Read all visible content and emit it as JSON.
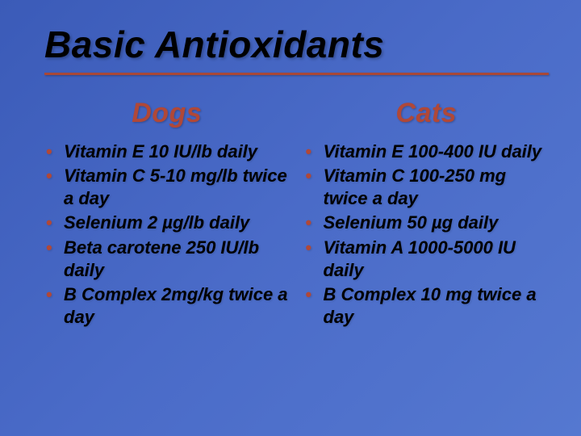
{
  "title": "Basic Antioxidants",
  "background_gradient": [
    "#3b5bb8",
    "#4a6bc8",
    "#5578d0"
  ],
  "underline_color": "#a84838",
  "header_color": "#b04838",
  "bullet_color": "#b04838",
  "text_color": "#000000",
  "title_fontsize": 46,
  "header_fontsize": 34,
  "item_fontsize": 22,
  "columns": [
    {
      "header": "Dogs",
      "items": [
        "Vitamin E 10 IU/lb daily",
        "Vitamin C 5-10 mg/lb twice a day",
        "Selenium 2 µg/lb daily",
        "Beta carotene 250 IU/lb daily",
        "B Complex 2mg/kg twice a day"
      ]
    },
    {
      "header": "Cats",
      "items": [
        "Vitamin E 100-400 IU daily",
        "Vitamin C 100-250 mg twice a day",
        "Selenium 50 µg daily",
        "Vitamin A 1000-5000 IU daily",
        "B Complex 10 mg twice a day"
      ]
    }
  ]
}
